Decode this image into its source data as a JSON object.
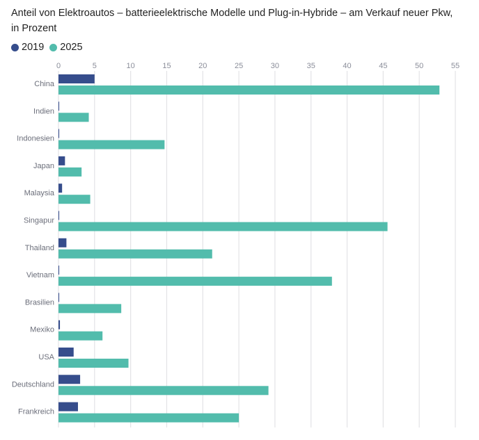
{
  "chart_data": {
    "type": "bar",
    "orientation": "horizontal",
    "title": "Anteil von Elektroautos – batterieelektrische Modelle und Plug-in-Hybride – am Verkauf neuer Pkw,",
    "subtitle": "in Prozent",
    "categories": [
      "China",
      "Indien",
      "Indonesien",
      "Japan",
      "Malaysia",
      "Singapur",
      "Thailand",
      "Vietnam",
      "Brasilien",
      "Mexiko",
      "USA",
      "Deutschland",
      "Frankreich"
    ],
    "series": [
      {
        "name": "2019",
        "color": "#364d8c",
        "values": [
          5.0,
          0.1,
          0.1,
          0.9,
          0.5,
          0.1,
          1.1,
          0.1,
          0.1,
          0.2,
          2.1,
          3.0,
          2.7
        ]
      },
      {
        "name": "2025",
        "color": "#52bcac",
        "values": [
          52.8,
          4.2,
          14.7,
          3.2,
          4.4,
          45.6,
          21.3,
          37.9,
          8.7,
          6.1,
          9.7,
          29.1,
          25.0
        ]
      }
    ],
    "xlim": [
      0,
      55
    ],
    "xticks": [
      0,
      5,
      10,
      15,
      20,
      25,
      30,
      35,
      40,
      45,
      50,
      55
    ],
    "grid": true,
    "legend_position": "top-left"
  }
}
